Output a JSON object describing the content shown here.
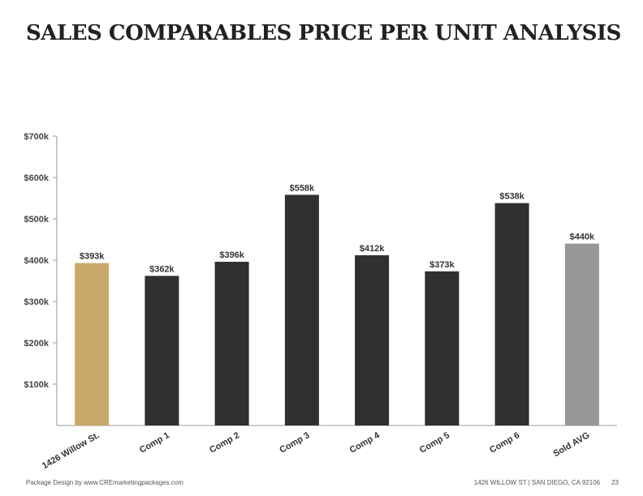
{
  "page": {
    "title": "SALES COMPARABLES PRICE PER UNIT ANALYSIS",
    "footer_left": "Package Design by www.CREmarketingpackages.com",
    "footer_address": "1426 WILLOW ST  |  SAN DIEGO, CA 92106",
    "page_number": "23"
  },
  "chart_data": {
    "type": "bar",
    "title": "SALES COMPARABLES PRICE PER UNIT ANALYSIS",
    "xlabel": "",
    "ylabel": "",
    "categories": [
      "1426 Willow St.",
      "Comp 1",
      "Comp 2",
      "Comp 3",
      "Comp 4",
      "Comp 5",
      "Comp 6",
      "Sold AVG"
    ],
    "values": [
      393,
      362,
      396,
      558,
      412,
      373,
      538,
      440
    ],
    "value_labels": [
      "$393k",
      "$362k",
      "$396k",
      "$558k",
      "$412k",
      "$373k",
      "$538k",
      "$440k"
    ],
    "bar_colors": [
      "#c9a96a",
      "#303030",
      "#303030",
      "#303030",
      "#303030",
      "#303030",
      "#303030",
      "#97979a"
    ],
    "ylim": [
      0,
      700
    ],
    "yticks": [
      100,
      200,
      300,
      400,
      500,
      600,
      700
    ],
    "ytick_labels": [
      "$100k",
      "$200k",
      "$300k",
      "$400k",
      "$500k",
      "$600k",
      "$700k"
    ],
    "grid": false,
    "legend": "none",
    "unit": "thousand USD per unit"
  }
}
